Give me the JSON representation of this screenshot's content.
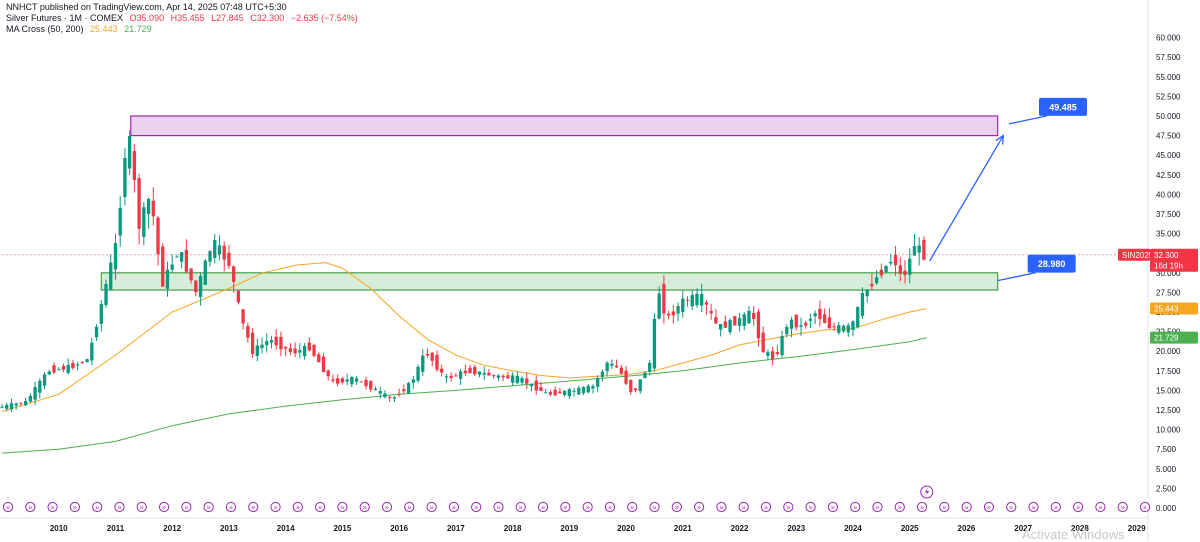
{
  "header": {
    "published": "NNHCT published on TradingView.com, Apr 14, 2025 07:48 UTC+5:30",
    "symbol": "Silver Futures · 1M · COMEX",
    "open": "O35.090",
    "high": "H35.455",
    "low": "L27.845",
    "close": "C32.300",
    "change": "−2.635 (−7.54%)",
    "indicator_name": "MA Cross (50, 200)",
    "ma_fast_value": "25.443",
    "ma_slow_value": "21.729"
  },
  "chart_data": {
    "type": "candlestick",
    "interval": "1M",
    "x_range": [
      2009.0,
      2029.2
    ],
    "ylim": [
      0,
      62.5
    ],
    "y_ticks": [
      "60.000",
      "57.500",
      "55.000",
      "52.500",
      "50.000",
      "47.500",
      "45.000",
      "42.500",
      "40.000",
      "37.500",
      "35.000",
      "32.500",
      "30.000",
      "27.500",
      "25.000",
      "22.500",
      "20.000",
      "17.500",
      "15.000",
      "12.500",
      "10.000",
      "7.500",
      "5.000",
      "2.500",
      "0.000"
    ],
    "x_ticks": [
      "2010",
      "2011",
      "2012",
      "2013",
      "2014",
      "2015",
      "2016",
      "2017",
      "2018",
      "2019",
      "2020",
      "2021",
      "2022",
      "2023",
      "2024",
      "2025",
      "2026",
      "2027",
      "2028",
      "2029"
    ],
    "colors": {
      "up": "#089981",
      "down": "#f23645",
      "ma_fast": "#f5a623",
      "ma_slow": "#4caf50",
      "arrow": "#2962ff"
    },
    "price_anchors": [
      [
        2009.0,
        12.8
      ],
      [
        2009.5,
        13.5
      ],
      [
        2009.9,
        17.5
      ],
      [
        2010.3,
        18.0
      ],
      [
        2010.6,
        19.0
      ],
      [
        2010.9,
        28.0
      ],
      [
        2011.1,
        34.0
      ],
      [
        2011.3,
        48.7
      ],
      [
        2011.5,
        36.0
      ],
      [
        2011.7,
        40.0
      ],
      [
        2011.9,
        28.5
      ],
      [
        2012.2,
        33.0
      ],
      [
        2012.5,
        27.5
      ],
      [
        2012.8,
        34.0
      ],
      [
        2013.1,
        31.0
      ],
      [
        2013.3,
        24.0
      ],
      [
        2013.5,
        20.0
      ],
      [
        2013.8,
        21.5
      ],
      [
        2014.2,
        19.8
      ],
      [
        2014.5,
        20.5
      ],
      [
        2014.9,
        16.0
      ],
      [
        2015.3,
        16.5
      ],
      [
        2015.8,
        14.5
      ],
      [
        2015.95,
        13.8
      ],
      [
        2016.3,
        16.0
      ],
      [
        2016.55,
        20.0
      ],
      [
        2016.9,
        16.5
      ],
      [
        2017.3,
        17.5
      ],
      [
        2017.8,
        16.8
      ],
      [
        2018.2,
        16.5
      ],
      [
        2018.7,
        14.5
      ],
      [
        2019.2,
        15.0
      ],
      [
        2019.5,
        15.5
      ],
      [
        2019.75,
        18.5
      ],
      [
        2019.95,
        17.8
      ],
      [
        2020.2,
        14.5
      ],
      [
        2020.5,
        18.5
      ],
      [
        2020.65,
        28.0
      ],
      [
        2020.8,
        24.0
      ],
      [
        2021.1,
        26.5
      ],
      [
        2021.4,
        27.0
      ],
      [
        2021.7,
        23.0
      ],
      [
        2022.1,
        24.0
      ],
      [
        2022.3,
        25.0
      ],
      [
        2022.5,
        20.0
      ],
      [
        2022.7,
        19.0
      ],
      [
        2022.95,
        24.0
      ],
      [
        2023.2,
        23.0
      ],
      [
        2023.4,
        25.0
      ],
      [
        2023.7,
        23.0
      ],
      [
        2024.05,
        23.0
      ],
      [
        2024.25,
        27.0
      ],
      [
        2024.45,
        29.0
      ],
      [
        2024.8,
        32.0
      ],
      [
        2024.95,
        29.0
      ],
      [
        2025.1,
        32.0
      ],
      [
        2025.2,
        34.5
      ],
      [
        2025.27,
        32.3
      ]
    ],
    "ma_fast": {
      "name": "MA 50",
      "points": [
        [
          2009.0,
          12.3
        ],
        [
          2010.0,
          14.5
        ],
        [
          2011.0,
          19.5
        ],
        [
          2012.0,
          25.0
        ],
        [
          2013.0,
          28.0
        ],
        [
          2013.6,
          30.0
        ],
        [
          2014.2,
          31.0
        ],
        [
          2014.7,
          31.3
        ],
        [
          2015.0,
          30.6
        ],
        [
          2015.5,
          28.0
        ],
        [
          2016.0,
          24.5
        ],
        [
          2016.5,
          21.5
        ],
        [
          2017.0,
          19.5
        ],
        [
          2017.5,
          18.2
        ],
        [
          2018.0,
          17.5
        ],
        [
          2018.5,
          16.9
        ],
        [
          2019.0,
          16.6
        ],
        [
          2019.5,
          16.8
        ],
        [
          2020.0,
          17.0
        ],
        [
          2020.5,
          17.5
        ],
        [
          2021.0,
          18.5
        ],
        [
          2021.5,
          19.5
        ],
        [
          2022.0,
          20.8
        ],
        [
          2022.5,
          21.5
        ],
        [
          2023.0,
          22.2
        ],
        [
          2023.5,
          22.7
        ],
        [
          2024.0,
          22.9
        ],
        [
          2024.5,
          24.0
        ],
        [
          2025.0,
          25.0
        ],
        [
          2025.3,
          25.44
        ]
      ]
    },
    "ma_slow": {
      "name": "MA 200",
      "points": [
        [
          2009.0,
          7.0
        ],
        [
          2010.0,
          7.5
        ],
        [
          2011.0,
          8.5
        ],
        [
          2012.0,
          10.5
        ],
        [
          2013.0,
          12.0
        ],
        [
          2014.0,
          13.0
        ],
        [
          2015.0,
          13.8
        ],
        [
          2016.0,
          14.5
        ],
        [
          2017.0,
          15.0
        ],
        [
          2018.0,
          15.6
        ],
        [
          2019.0,
          16.2
        ],
        [
          2020.0,
          16.8
        ],
        [
          2021.0,
          17.5
        ],
        [
          2022.0,
          18.5
        ],
        [
          2023.0,
          19.3
        ],
        [
          2024.0,
          20.2
        ],
        [
          2025.0,
          21.2
        ],
        [
          2025.3,
          21.73
        ]
      ]
    },
    "zones": [
      {
        "name": "resistance-zone",
        "x": [
          2011.27,
          2026.55
        ],
        "y": [
          47.5,
          50.0
        ],
        "color": "#e1bee7",
        "border": "#9c27b0"
      },
      {
        "name": "support-zone",
        "x": [
          2010.75,
          2026.55
        ],
        "y": [
          27.8,
          30.0
        ],
        "color": "#c8e6c9",
        "border": "#43a047"
      }
    ],
    "projection_arrow": {
      "from": [
        2025.35,
        31.5
      ],
      "to": [
        2026.65,
        47.5
      ]
    },
    "annotations": [
      {
        "name": "resistance-callout",
        "label": "49.485",
        "anchor": [
          2026.75,
          49.0
        ]
      },
      {
        "name": "support-callout",
        "label": "28.980",
        "anchor": [
          2026.55,
          29.0
        ]
      }
    ],
    "price_badges": [
      {
        "name": "symbol-badge",
        "label": "SIN2025",
        "value": 32.3,
        "color": "#f23645"
      },
      {
        "name": "last-price-badge",
        "label": "32.300",
        "value": 32.3,
        "color": "#f23645"
      },
      {
        "name": "countdown-badge",
        "label": "16d 19h",
        "value": 30.9,
        "color": "#f23645"
      },
      {
        "name": "ma-fast-badge",
        "label": "25.443",
        "value": 25.443,
        "color": "#f5a623"
      },
      {
        "name": "ma-slow-badge",
        "label": "21.729",
        "value": 21.729,
        "color": "#4caf50"
      }
    ],
    "event_marker_count": 52,
    "event_marker_glyph": "»"
  },
  "watermark": "Activate Windows"
}
